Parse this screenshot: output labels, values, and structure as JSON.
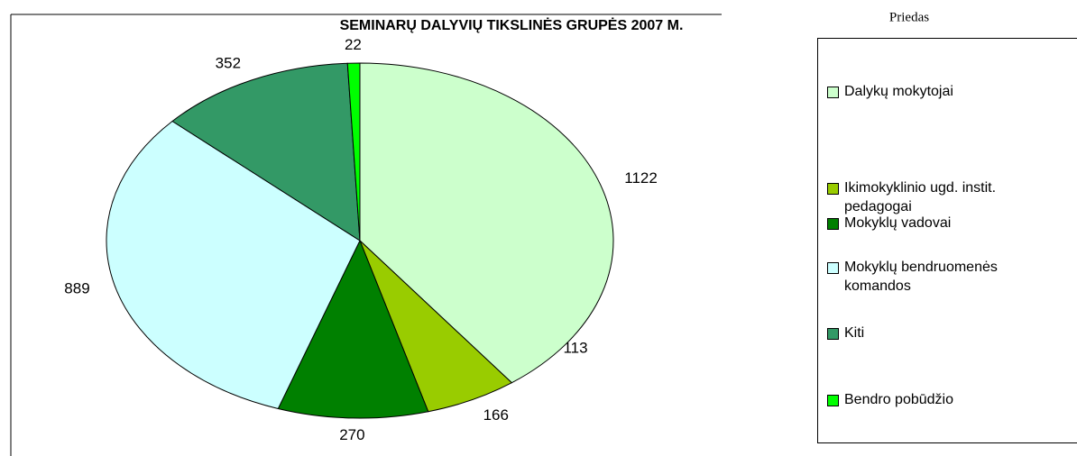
{
  "chart_data": {
    "type": "pie",
    "title": "SEMINARŲ  DALYVIŲ  TIKSLINĖS  GRUPĖS  2007 M.",
    "note": "Priedas",
    "categories": [
      "Dalykų mokytojai",
      "Ikimokyklinio ugd. instit. pedagogai",
      "Mokyklų vadovai",
      "Mokyklų bendruomenės komandos",
      "Kiti",
      "Bendro pobūdžio"
    ],
    "values": [
      1122,
      166,
      270,
      889,
      352,
      22
    ],
    "colors": [
      "#ccffcc",
      "#99cc00",
      "#008000",
      "#ccffff",
      "#339966",
      "#00ff00"
    ],
    "annotation": "113",
    "legend": "right"
  }
}
